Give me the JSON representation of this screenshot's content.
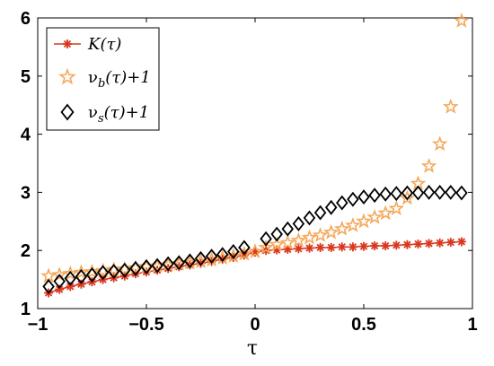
{
  "chart_data": {
    "type": "scatter",
    "title": "",
    "xlabel": "τ",
    "ylabel": "",
    "xlim": [
      -1,
      1
    ],
    "ylim": [
      1,
      6
    ],
    "xticks": [
      "-1",
      "-0.5",
      "0",
      "0.5",
      "1"
    ],
    "yticks": [
      "1",
      "2",
      "3",
      "4",
      "5",
      "6"
    ],
    "legend_position": "top-left",
    "grid": false,
    "series": [
      {
        "name": "K(τ)",
        "legend_main": "K(τ)",
        "marker": "asterisk-line",
        "color": "#d9381e",
        "x": [
          -0.95,
          -0.9,
          -0.85,
          -0.8,
          -0.75,
          -0.7,
          -0.65,
          -0.6,
          -0.55,
          -0.5,
          -0.45,
          -0.4,
          -0.35,
          -0.3,
          -0.25,
          -0.2,
          -0.15,
          -0.1,
          -0.05,
          0.0,
          0.05,
          0.1,
          0.15,
          0.2,
          0.25,
          0.3,
          0.35,
          0.4,
          0.45,
          0.5,
          0.55,
          0.6,
          0.65,
          0.7,
          0.75,
          0.8,
          0.85,
          0.9,
          0.95
        ],
        "y": [
          1.27,
          1.33,
          1.38,
          1.42,
          1.46,
          1.5,
          1.53,
          1.56,
          1.6,
          1.63,
          1.66,
          1.69,
          1.72,
          1.75,
          1.78,
          1.81,
          1.85,
          1.88,
          1.92,
          1.97,
          2.0,
          2.01,
          2.02,
          2.03,
          2.04,
          2.05,
          2.05,
          2.06,
          2.06,
          2.07,
          2.08,
          2.08,
          2.09,
          2.1,
          2.11,
          2.12,
          2.13,
          2.14,
          2.15
        ]
      },
      {
        "name": "ν_b(τ)+1",
        "legend_main": "ν",
        "legend_sub": "b",
        "legend_tail": "(τ)+1",
        "marker": "star",
        "color": "#f5a85a",
        "x": [
          -0.95,
          -0.9,
          -0.85,
          -0.8,
          -0.75,
          -0.7,
          -0.65,
          -0.6,
          -0.55,
          -0.5,
          -0.45,
          -0.4,
          -0.35,
          -0.3,
          -0.25,
          -0.2,
          -0.15,
          -0.1,
          -0.05,
          0.0,
          0.05,
          0.1,
          0.15,
          0.2,
          0.25,
          0.3,
          0.35,
          0.4,
          0.45,
          0.5,
          0.55,
          0.6,
          0.65,
          0.7,
          0.75,
          0.8,
          0.85,
          0.9,
          0.95
        ],
        "y": [
          1.56,
          1.58,
          1.6,
          1.62,
          1.63,
          1.65,
          1.67,
          1.68,
          1.7,
          1.72,
          1.73,
          1.75,
          1.77,
          1.79,
          1.81,
          1.84,
          1.87,
          1.9,
          1.94,
          1.98,
          2.05,
          2.1,
          2.13,
          2.17,
          2.22,
          2.26,
          2.31,
          2.37,
          2.43,
          2.5,
          2.57,
          2.64,
          2.72,
          2.9,
          3.15,
          3.45,
          3.83,
          4.47,
          5.95
        ]
      },
      {
        "name": "ν_s(τ)+1",
        "legend_main": "ν",
        "legend_sub": "s",
        "legend_tail": "(τ)+1",
        "marker": "diamond",
        "color": "#000000",
        "x": [
          -0.95,
          -0.9,
          -0.85,
          -0.8,
          -0.75,
          -0.7,
          -0.65,
          -0.6,
          -0.55,
          -0.5,
          -0.45,
          -0.4,
          -0.35,
          -0.3,
          -0.25,
          -0.2,
          -0.15,
          -0.1,
          -0.05,
          0.05,
          0.1,
          0.15,
          0.2,
          0.25,
          0.3,
          0.35,
          0.4,
          0.45,
          0.5,
          0.55,
          0.6,
          0.65,
          0.7,
          0.75,
          0.8,
          0.85,
          0.9,
          0.95
        ],
        "y": [
          1.38,
          1.47,
          1.52,
          1.55,
          1.58,
          1.62,
          1.64,
          1.66,
          1.69,
          1.72,
          1.74,
          1.77,
          1.79,
          1.82,
          1.86,
          1.9,
          1.93,
          1.98,
          2.05,
          2.2,
          2.28,
          2.37,
          2.46,
          2.56,
          2.65,
          2.74,
          2.82,
          2.88,
          2.92,
          2.95,
          2.97,
          2.98,
          2.99,
          2.99,
          3.0,
          3.0,
          3.0,
          2.99
        ]
      }
    ]
  }
}
